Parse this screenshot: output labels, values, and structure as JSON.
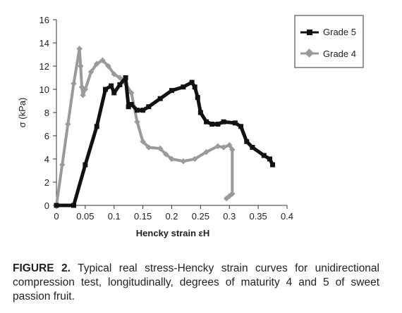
{
  "colors": {
    "grade5": "#111111",
    "grade4": "#9a9a9a",
    "axis": "#333333"
  },
  "chart_data": {
    "type": "line",
    "xlabel": "Hencky strain εH",
    "ylabel": "σ (kPa)",
    "xlim": [
      0,
      0.4
    ],
    "ylim": [
      0,
      16
    ],
    "xticks": [
      0,
      0.05,
      0.1,
      0.15,
      0.2,
      0.25,
      0.3,
      0.35,
      0.4
    ],
    "xtick_labels": [
      "0",
      "0.05",
      "0.1",
      "0.15",
      "0.2",
      "0.25",
      "0.3",
      "0.35",
      "0.4"
    ],
    "yticks": [
      0,
      2,
      4,
      6,
      8,
      10,
      12,
      14,
      16
    ],
    "ytick_labels": [
      "0",
      "2",
      "4",
      "6",
      "8",
      "10",
      "12",
      "14",
      "16"
    ],
    "grid": false,
    "legend_position": "top-right",
    "series": [
      {
        "name": "Grade 5",
        "marker": "square",
        "points": [
          [
            0.0,
            0.0
          ],
          [
            0.03,
            0.0
          ],
          [
            0.05,
            3.5
          ],
          [
            0.07,
            6.8
          ],
          [
            0.085,
            10.0
          ],
          [
            0.095,
            10.3
          ],
          [
            0.1,
            9.7
          ],
          [
            0.11,
            10.4
          ],
          [
            0.12,
            11.0
          ],
          [
            0.125,
            8.5
          ],
          [
            0.13,
            8.7
          ],
          [
            0.14,
            8.2
          ],
          [
            0.15,
            8.2
          ],
          [
            0.16,
            8.5
          ],
          [
            0.18,
            9.2
          ],
          [
            0.2,
            9.9
          ],
          [
            0.22,
            10.2
          ],
          [
            0.235,
            10.6
          ],
          [
            0.24,
            10.2
          ],
          [
            0.245,
            9.3
          ],
          [
            0.25,
            8.0
          ],
          [
            0.26,
            7.2
          ],
          [
            0.27,
            7.0
          ],
          [
            0.28,
            7.0
          ],
          [
            0.29,
            7.2
          ],
          [
            0.31,
            7.1
          ],
          [
            0.32,
            6.8
          ],
          [
            0.33,
            5.5
          ],
          [
            0.34,
            5.0
          ],
          [
            0.36,
            4.3
          ],
          [
            0.37,
            4.0
          ],
          [
            0.375,
            3.5
          ]
        ]
      },
      {
        "name": "Grade 4",
        "marker": "diamond",
        "points": [
          [
            0.0,
            0.0
          ],
          [
            0.01,
            3.5
          ],
          [
            0.02,
            7.0
          ],
          [
            0.03,
            10.5
          ],
          [
            0.04,
            13.5
          ],
          [
            0.042,
            12.0
          ],
          [
            0.044,
            10.2
          ],
          [
            0.046,
            9.5
          ],
          [
            0.05,
            10.0
          ],
          [
            0.06,
            11.5
          ],
          [
            0.07,
            12.2
          ],
          [
            0.08,
            12.5
          ],
          [
            0.09,
            12.0
          ],
          [
            0.1,
            11.3
          ],
          [
            0.11,
            11.0
          ],
          [
            0.12,
            10.5
          ],
          [
            0.13,
            9.7
          ],
          [
            0.14,
            7.2
          ],
          [
            0.15,
            5.5
          ],
          [
            0.16,
            5.0
          ],
          [
            0.18,
            4.9
          ],
          [
            0.19,
            4.4
          ],
          [
            0.2,
            4.0
          ],
          [
            0.22,
            3.8
          ],
          [
            0.24,
            4.0
          ],
          [
            0.26,
            4.6
          ],
          [
            0.28,
            5.1
          ],
          [
            0.29,
            5.0
          ],
          [
            0.3,
            5.2
          ],
          [
            0.305,
            4.8
          ],
          [
            0.305,
            1.0
          ],
          [
            0.3,
            0.8
          ],
          [
            0.295,
            0.6
          ]
        ]
      }
    ]
  },
  "caption": {
    "label": "FIGURE 2.",
    "text": " Typical real stress-Hencky strain curves for unidirectional compression test, longitudinally, degrees of maturity 4 and 5 of sweet passion fruit."
  }
}
